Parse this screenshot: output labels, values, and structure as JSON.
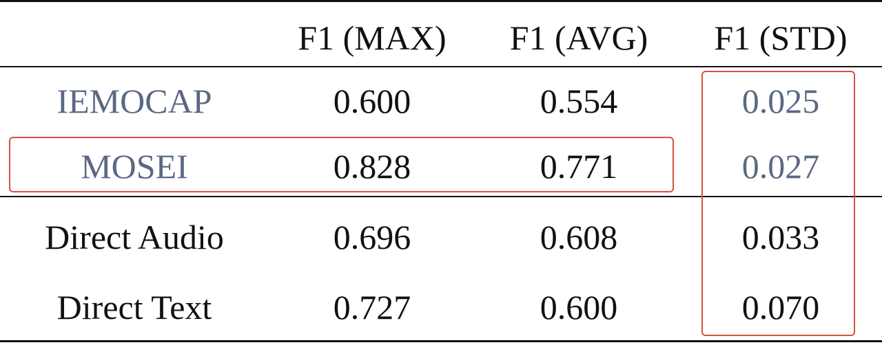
{
  "table": {
    "header": [
      "F1 (MAX)",
      "F1 (AVG)",
      "F1 (STD)"
    ],
    "rows": [
      [
        "IEMOCAP",
        "0.600",
        "0.554",
        "0.025"
      ],
      [
        "MOSEI",
        "0.828",
        "0.771",
        "0.027"
      ],
      [
        "Direct Audio",
        "0.696",
        "0.608",
        "0.033"
      ],
      [
        "Direct Text",
        "0.727",
        "0.600",
        "0.070"
      ]
    ]
  }
}
